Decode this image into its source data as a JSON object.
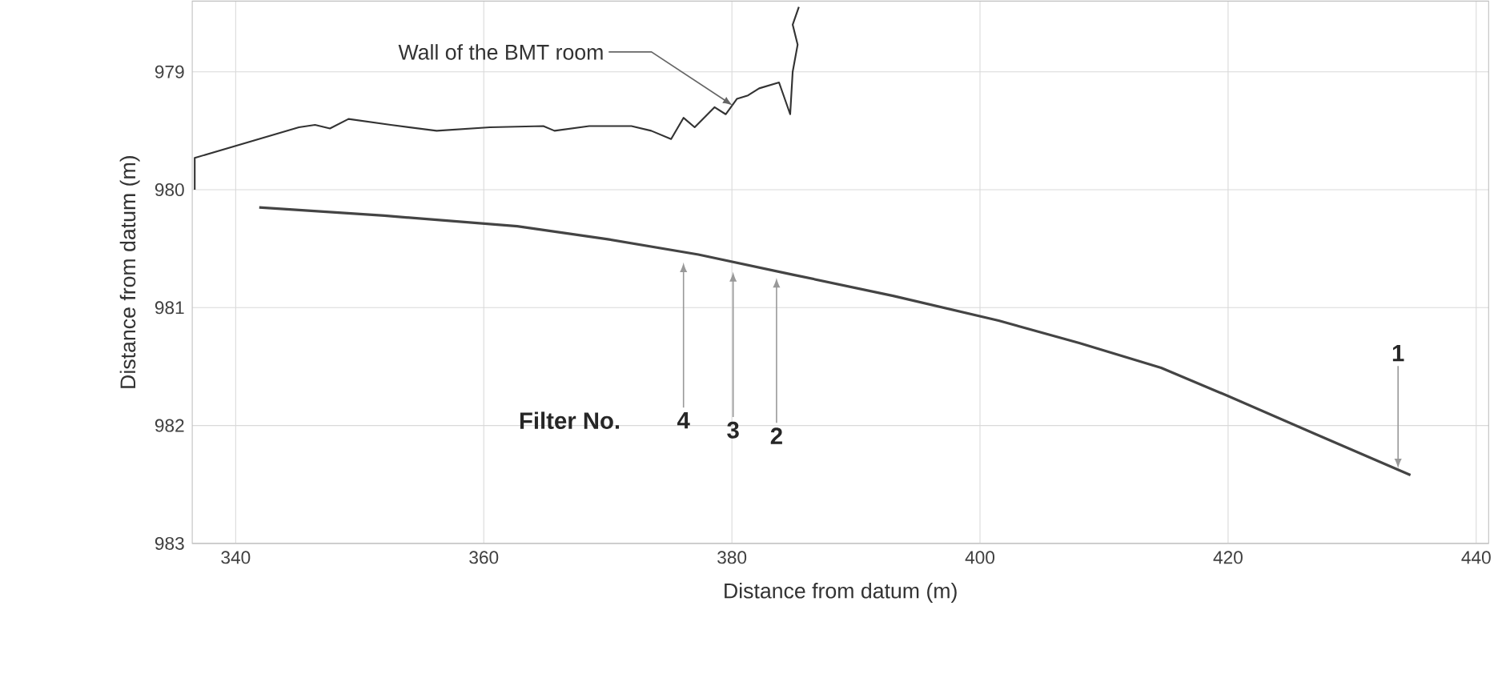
{
  "chart_data": {
    "type": "line",
    "xlabel": "Distance from datum (m)",
    "ylabel": "Distance from datum (m)",
    "xlim": [
      336.5,
      441
    ],
    "ylim": [
      983,
      978.4
    ],
    "xticks": [
      340,
      360,
      380,
      400,
      420,
      440
    ],
    "yticks": [
      979,
      980,
      981,
      982,
      983
    ],
    "grid": true,
    "marker": "none",
    "line_style": "solid",
    "series": [
      {
        "color": "#333333",
        "x": [
          336.7,
          336.7,
          345.1,
          346.4,
          347.6,
          349.1,
          352.5,
          356.2,
          360.5,
          364.8,
          365.7,
          368.5,
          371.9,
          373.5,
          375.1,
          376.1,
          377.0,
          378.6,
          379.5,
          380.4,
          381.3,
          382.2,
          383.8,
          384.7,
          384.9,
          385.3,
          384.9,
          385.4
        ],
        "values": [
          980.0,
          979.73,
          979.47,
          979.45,
          979.48,
          979.4,
          979.45,
          979.5,
          979.47,
          979.46,
          979.5,
          979.46,
          979.46,
          979.5,
          979.57,
          979.39,
          979.47,
          979.3,
          979.36,
          979.23,
          979.2,
          979.14,
          979.09,
          979.36,
          979.0,
          978.77,
          978.6,
          978.45
        ]
      },
      {
        "color": "#444444",
        "x": [
          341.9,
          352.0,
          362.7,
          370.0,
          377.3,
          384.9,
          393.0,
          401.5,
          408.0,
          414.6,
          420.0,
          427.0,
          434.7
        ],
        "values": [
          980.15,
          980.22,
          980.31,
          980.42,
          980.55,
          980.72,
          980.9,
          981.11,
          981.3,
          981.51,
          981.75,
          982.07,
          982.42
        ]
      }
    ],
    "annotations": [
      {
        "text": "Wall of the BMT room",
        "x": 380.4,
        "y": 979.23
      },
      "Filter No.",
      {
        "text": "4",
        "x": 376.1,
        "y": 980.58
      },
      {
        "text": "3",
        "x": 380.1,
        "y": 980.66
      },
      {
        "text": "2",
        "x": 383.6,
        "y": 980.71
      },
      {
        "text": "1",
        "x": 433.7,
        "y": 982.4
      }
    ]
  }
}
